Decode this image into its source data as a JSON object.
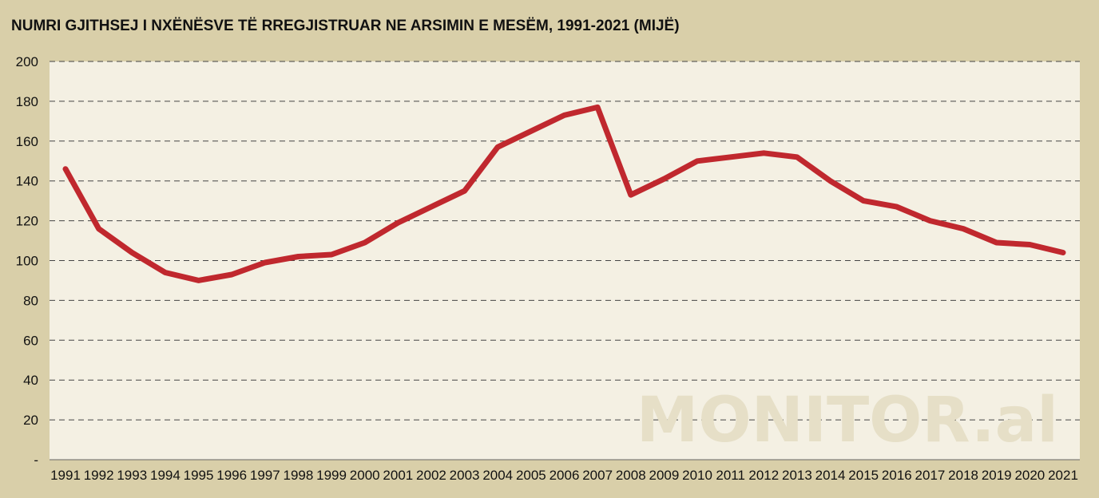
{
  "colors": {
    "background": "#d9cfa9",
    "plot_area": "#f4f0e3",
    "line": "#c0282e",
    "grid": "#444444",
    "watermark": "#e6dfc7"
  },
  "watermark": "MONITOR.al",
  "chart_data": {
    "type": "line",
    "title": "NUMRI  GJITHSEJ I NXËNËSVE TË RREGJISTRUAR NE ARSIMIN E MESËM, 1991-2021 (MIJË)",
    "xlabel": "",
    "ylabel": "",
    "x": [
      "1991",
      "1992",
      "1993",
      "1994",
      "1995",
      "1996",
      "1997",
      "1998",
      "1999",
      "2000",
      "2001",
      "2002",
      "2003",
      "2004",
      "2005",
      "2006",
      "2007",
      "2008",
      "2009",
      "2010",
      "2011",
      "2012",
      "2013",
      "2014",
      "2015",
      "2016",
      "2017",
      "2018",
      "2019",
      "2020",
      "2021"
    ],
    "series": [
      {
        "values": [
          146,
          116,
          104,
          94,
          90,
          93,
          99,
          102,
          103,
          109,
          119,
          127,
          135,
          157,
          165,
          173,
          177,
          133,
          141,
          150,
          152,
          154,
          152,
          140,
          130,
          127,
          120,
          116,
          109,
          108,
          104
        ]
      }
    ],
    "yticks": [
      "-",
      "20",
      "40",
      "60",
      "80",
      "100",
      "120",
      "140",
      "160",
      "180",
      "200"
    ],
    "ylim": [
      0,
      200
    ],
    "grid": "horizontal dashed",
    "legend": "none"
  }
}
